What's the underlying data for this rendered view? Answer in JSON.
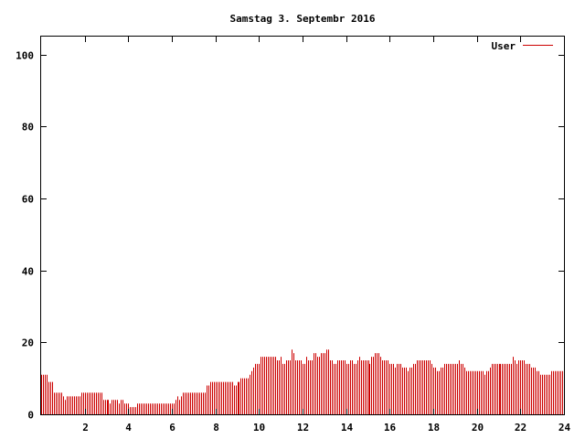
{
  "chart_data": {
    "type": "bar",
    "title": "Samstag 3. Septembr 2016",
    "xlabel": "",
    "ylabel": "",
    "xlim": [
      0,
      24
    ],
    "ylim": [
      0,
      105
    ],
    "xticks": [
      2,
      4,
      6,
      8,
      10,
      12,
      14,
      16,
      18,
      20,
      22,
      24
    ],
    "yticks": [
      0,
      20,
      40,
      60,
      80,
      100
    ],
    "grid": false,
    "legend_position": "top-right",
    "bar_interval_minutes": 5,
    "series": [
      {
        "name": "User",
        "color": "#cc0000",
        "values": [
          11,
          11,
          11,
          11,
          9,
          9,
          9,
          6,
          6,
          6,
          6,
          6,
          5,
          4,
          5,
          5,
          5,
          5,
          5,
          5,
          5,
          5,
          6,
          6,
          6,
          6,
          6,
          6,
          6,
          6,
          6,
          6,
          6,
          6,
          4,
          4,
          4,
          4,
          3,
          4,
          4,
          4,
          4,
          3,
          4,
          4,
          3,
          3,
          3,
          2,
          2,
          2,
          2,
          3,
          3,
          3,
          3,
          3,
          3,
          3,
          3,
          3,
          3,
          3,
          3,
          3,
          3,
          3,
          3,
          3,
          3,
          3,
          3,
          3,
          4,
          5,
          4,
          5,
          6,
          6,
          6,
          6,
          6,
          6,
          6,
          6,
          6,
          6,
          6,
          6,
          6,
          8,
          8,
          9,
          9,
          9,
          9,
          9,
          9,
          9,
          9,
          9,
          9,
          9,
          9,
          9,
          8,
          8,
          9,
          9,
          10,
          10,
          10,
          10,
          10,
          11,
          12,
          13,
          14,
          14,
          14,
          16,
          16,
          16,
          16,
          16,
          16,
          16,
          16,
          16,
          15,
          15,
          16,
          14,
          14,
          15,
          15,
          15,
          18,
          17,
          15,
          15,
          15,
          15,
          14,
          14,
          16,
          15,
          15,
          15,
          17,
          17,
          16,
          16,
          17,
          17,
          17,
          18,
          18,
          15,
          15,
          14,
          14,
          15,
          15,
          15,
          15,
          15,
          14,
          14,
          15,
          15,
          14,
          14,
          15,
          16,
          15,
          15,
          15,
          15,
          15,
          14,
          16,
          16,
          17,
          17,
          17,
          16,
          15,
          15,
          15,
          15,
          14,
          14,
          14,
          13,
          14,
          14,
          14,
          13,
          13,
          13,
          12,
          13,
          13,
          14,
          14,
          15,
          15,
          15,
          15,
          15,
          15,
          15,
          15,
          14,
          13,
          13,
          12,
          12,
          13,
          13,
          14,
          14,
          14,
          14,
          14,
          14,
          14,
          14,
          15,
          14,
          14,
          13,
          12,
          12,
          12,
          12,
          12,
          12,
          12,
          12,
          12,
          12,
          11,
          12,
          12,
          13,
          14,
          14,
          14,
          14,
          14,
          14,
          14,
          14,
          14,
          14,
          14,
          14,
          16,
          15,
          14,
          15,
          15,
          15,
          15,
          14,
          14,
          14,
          13,
          13,
          13,
          12,
          12,
          11,
          11,
          11,
          11,
          11,
          11,
          12,
          12,
          12,
          12,
          12,
          12,
          12
        ]
      }
    ]
  }
}
